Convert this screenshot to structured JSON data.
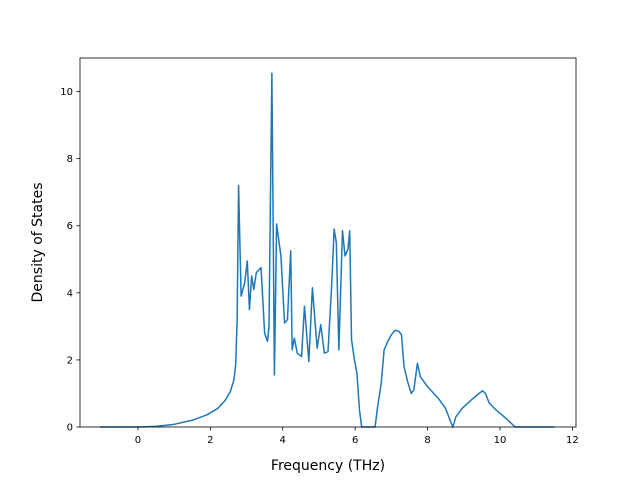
{
  "chart_data": {
    "type": "line",
    "title": "",
    "xlabel": "Frequency (THz)",
    "ylabel": "Density of States",
    "xlim": [
      -1.6,
      12.1
    ],
    "ylim": [
      0,
      11
    ],
    "xticks": [
      0,
      2,
      4,
      6,
      8,
      10,
      12
    ],
    "yticks": [
      0,
      2,
      4,
      6,
      8,
      10
    ],
    "grid": false,
    "legend": "none",
    "series": [
      {
        "color": "#1f77b4",
        "points": [
          [
            -1.05,
            0.0
          ],
          [
            0.0,
            0.0
          ],
          [
            0.5,
            0.02
          ],
          [
            1.0,
            0.08
          ],
          [
            1.5,
            0.2
          ],
          [
            1.9,
            0.36
          ],
          [
            2.2,
            0.55
          ],
          [
            2.4,
            0.78
          ],
          [
            2.55,
            1.05
          ],
          [
            2.65,
            1.4
          ],
          [
            2.7,
            1.85
          ],
          [
            2.74,
            3.2
          ],
          [
            2.78,
            7.2
          ],
          [
            2.85,
            3.9
          ],
          [
            2.95,
            4.3
          ],
          [
            3.02,
            4.95
          ],
          [
            3.08,
            3.5
          ],
          [
            3.14,
            4.5
          ],
          [
            3.2,
            4.1
          ],
          [
            3.27,
            4.6
          ],
          [
            3.4,
            4.75
          ],
          [
            3.5,
            2.8
          ],
          [
            3.58,
            2.55
          ],
          [
            3.62,
            3.0
          ],
          [
            3.7,
            10.55
          ],
          [
            3.77,
            1.55
          ],
          [
            3.83,
            6.05
          ],
          [
            3.95,
            5.1
          ],
          [
            4.05,
            3.1
          ],
          [
            4.13,
            3.2
          ],
          [
            4.22,
            5.25
          ],
          [
            4.26,
            2.3
          ],
          [
            4.32,
            2.65
          ],
          [
            4.4,
            2.2
          ],
          [
            4.52,
            2.1
          ],
          [
            4.6,
            3.6
          ],
          [
            4.72,
            1.95
          ],
          [
            4.82,
            4.15
          ],
          [
            4.95,
            2.35
          ],
          [
            5.05,
            3.05
          ],
          [
            5.15,
            2.2
          ],
          [
            5.25,
            2.25
          ],
          [
            5.35,
            4.2
          ],
          [
            5.42,
            5.9
          ],
          [
            5.48,
            5.5
          ],
          [
            5.55,
            2.3
          ],
          [
            5.65,
            5.85
          ],
          [
            5.72,
            5.1
          ],
          [
            5.8,
            5.3
          ],
          [
            5.85,
            5.85
          ],
          [
            5.9,
            2.6
          ],
          [
            5.98,
            2.0
          ],
          [
            6.05,
            1.6
          ],
          [
            6.12,
            0.5
          ],
          [
            6.18,
            0.0
          ],
          [
            6.55,
            0.0
          ],
          [
            6.62,
            0.6
          ],
          [
            6.72,
            1.3
          ],
          [
            6.8,
            2.3
          ],
          [
            6.9,
            2.55
          ],
          [
            7.0,
            2.75
          ],
          [
            7.1,
            2.88
          ],
          [
            7.2,
            2.86
          ],
          [
            7.28,
            2.75
          ],
          [
            7.35,
            1.8
          ],
          [
            7.45,
            1.35
          ],
          [
            7.55,
            1.0
          ],
          [
            7.62,
            1.1
          ],
          [
            7.72,
            1.9
          ],
          [
            7.8,
            1.5
          ],
          [
            8.0,
            1.2
          ],
          [
            8.3,
            0.85
          ],
          [
            8.5,
            0.55
          ],
          [
            8.62,
            0.2
          ],
          [
            8.7,
            0.0
          ],
          [
            8.78,
            0.3
          ],
          [
            8.95,
            0.55
          ],
          [
            9.2,
            0.8
          ],
          [
            9.4,
            0.98
          ],
          [
            9.52,
            1.08
          ],
          [
            9.6,
            1.0
          ],
          [
            9.7,
            0.72
          ],
          [
            9.9,
            0.5
          ],
          [
            10.1,
            0.32
          ],
          [
            10.3,
            0.12
          ],
          [
            10.42,
            0.0
          ],
          [
            11.5,
            0.0
          ]
        ]
      }
    ]
  }
}
